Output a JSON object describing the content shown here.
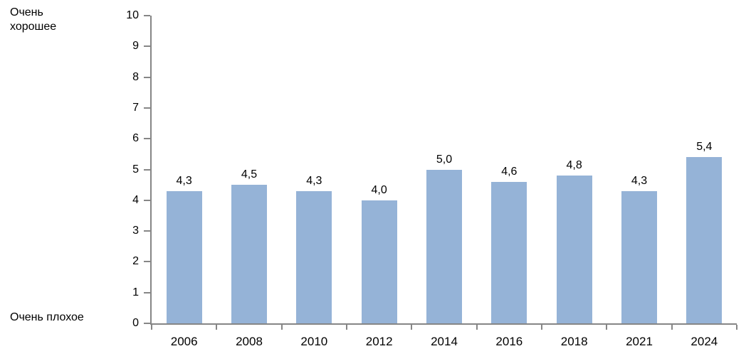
{
  "chart_data": {
    "type": "bar",
    "title": "",
    "xlabel": "",
    "ylabel_top": "Очень хорошее",
    "ylabel_bottom": "Очень плохое",
    "categories": [
      "2006",
      "2008",
      "2010",
      "2012",
      "2014",
      "2016",
      "2018",
      "2021",
      "2024"
    ],
    "values": [
      4.3,
      4.5,
      4.3,
      4.0,
      5.0,
      4.6,
      4.8,
      4.3,
      5.4
    ],
    "value_labels": [
      "4,3",
      "4,5",
      "4,3",
      "4,0",
      "5,0",
      "4,6",
      "4,8",
      "4,3",
      "5,4"
    ],
    "ylim": [
      0,
      10
    ],
    "ytick_step": 1,
    "ytick_labels": [
      "0",
      "1",
      "2",
      "3",
      "4",
      "5",
      "6",
      "7",
      "8",
      "9",
      "10"
    ],
    "grid": false,
    "legend": false,
    "bar_color": "#95b3d7",
    "axis_color": "#868686",
    "text_color": "#000000",
    "background_color": "#ffffff"
  }
}
